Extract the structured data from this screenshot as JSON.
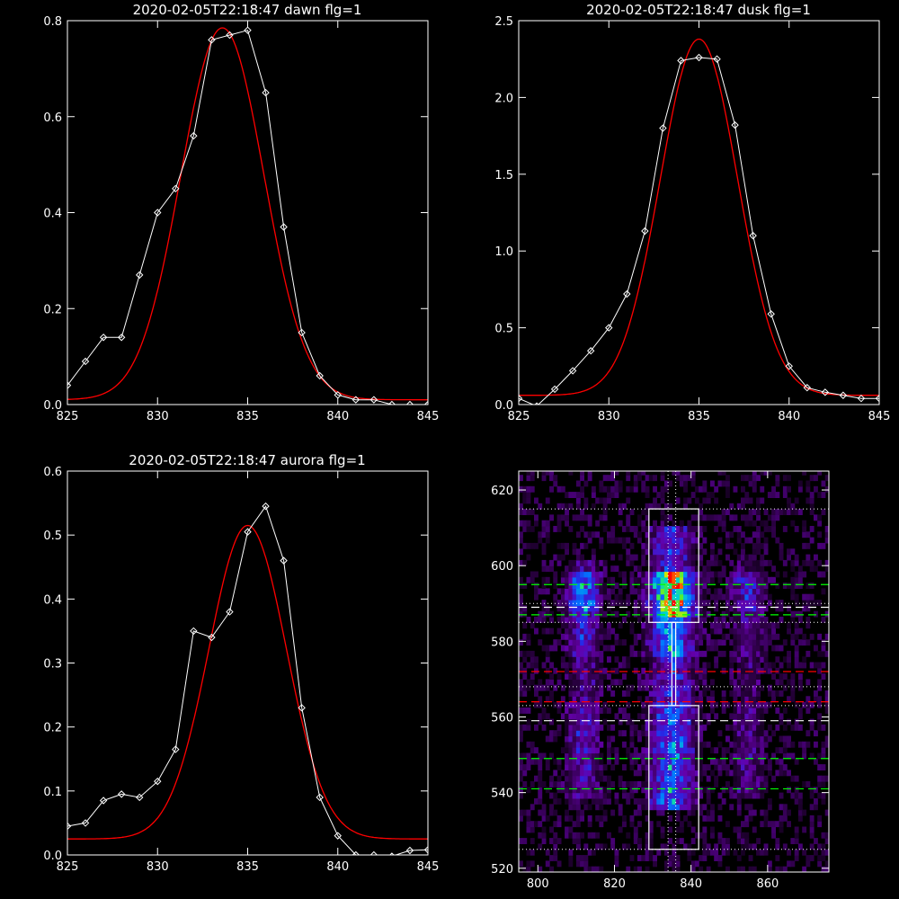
{
  "colors": {
    "background": "#000000",
    "axes": "#ffffff",
    "measured": "#ffffff",
    "fit": "#ff0000",
    "guide_green": "#00ff00",
    "guide_red": "#ff0000",
    "guide_white": "#ffffff"
  },
  "chart_data": [
    {
      "id": "dawn",
      "type": "line",
      "title": "2020-02-05T22:18:47 dawn flg=1",
      "xlim": [
        825,
        845
      ],
      "ylim": [
        0,
        0.8
      ],
      "xticks": [
        825,
        830,
        835,
        840,
        845
      ],
      "yticks": [
        0.0,
        0.2,
        0.4,
        0.6,
        0.8
      ],
      "ytick_labels": [
        "0.0",
        "0.2",
        "0.4",
        "0.6",
        "0.8"
      ],
      "measured": {
        "marker": "diamond",
        "x": [
          825,
          826,
          827,
          828,
          829,
          830,
          831,
          832,
          833,
          834,
          835,
          836,
          837,
          838,
          839,
          840,
          841,
          842,
          843,
          844,
          845
        ],
        "y": [
          0.04,
          0.09,
          0.14,
          0.14,
          0.27,
          0.4,
          0.45,
          0.56,
          0.76,
          0.77,
          0.78,
          0.65,
          0.37,
          0.15,
          0.06,
          0.02,
          0.01,
          0.01,
          0.0,
          0.0,
          0.0
        ]
      },
      "fit": {
        "amplitude": 0.775,
        "center": 833.6,
        "sigma": 2.3,
        "baseline": 0.01
      }
    },
    {
      "id": "dusk",
      "type": "line",
      "title": "2020-02-05T22:18:47 dusk flg=1",
      "xlim": [
        825,
        845
      ],
      "ylim": [
        0,
        2.5
      ],
      "xticks": [
        825,
        830,
        835,
        840,
        845
      ],
      "yticks": [
        0.0,
        0.5,
        1.0,
        1.5,
        2.0,
        2.5
      ],
      "ytick_labels": [
        "0.0",
        "0.5",
        "1.0",
        "1.5",
        "2.0",
        "2.5"
      ],
      "measured": {
        "marker": "diamond",
        "x": [
          825,
          826,
          827,
          828,
          829,
          830,
          831,
          832,
          833,
          834,
          835,
          836,
          837,
          838,
          839,
          840,
          841,
          842,
          843,
          844,
          845
        ],
        "y": [
          0.04,
          -0.01,
          0.1,
          0.22,
          0.35,
          0.5,
          0.72,
          1.13,
          1.8,
          2.24,
          2.26,
          2.25,
          1.82,
          1.1,
          0.59,
          0.25,
          0.11,
          0.08,
          0.06,
          0.04,
          0.04
        ]
      },
      "fit": {
        "amplitude": 2.32,
        "center": 835.0,
        "sigma": 2.15,
        "baseline": 0.06
      }
    },
    {
      "id": "aurora",
      "type": "line",
      "title": "2020-02-05T22:18:47 aurora flg=1",
      "xlim": [
        825,
        845
      ],
      "ylim": [
        0,
        0.6
      ],
      "xticks": [
        825,
        830,
        835,
        840,
        845
      ],
      "yticks": [
        0.0,
        0.1,
        0.2,
        0.3,
        0.4,
        0.5,
        0.6
      ],
      "ytick_labels": [
        "0.0",
        "0.1",
        "0.2",
        "0.3",
        "0.4",
        "0.5",
        "0.6"
      ],
      "measured": {
        "marker": "diamond",
        "x": [
          825,
          826,
          827,
          828,
          829,
          830,
          831,
          832,
          833,
          834,
          835,
          836,
          837,
          838,
          839,
          840,
          841,
          842,
          843,
          844,
          845
        ],
        "y": [
          0.045,
          0.05,
          0.085,
          0.095,
          0.09,
          0.115,
          0.165,
          0.35,
          0.34,
          0.38,
          0.505,
          0.545,
          0.46,
          0.23,
          0.09,
          0.03,
          0.0,
          0.0,
          -0.002,
          0.007,
          0.008
        ]
      },
      "fit": {
        "amplitude": 0.49,
        "center": 835.0,
        "sigma": 2.15,
        "baseline": 0.025
      }
    },
    {
      "id": "image",
      "type": "heatmap",
      "xlim": [
        795,
        876
      ],
      "ylim": [
        519,
        625
      ],
      "xticks": [
        800,
        820,
        840,
        860
      ],
      "yticks": [
        520,
        540,
        560,
        580,
        600,
        620
      ],
      "columns": [
        {
          "center": 812,
          "width": 6,
          "peak": 0.55,
          "high": [
            588,
            598
          ],
          "extent": [
            538,
            600
          ]
        },
        {
          "center": 835,
          "width": 8,
          "peak": 1.0,
          "high": [
            586,
            598
          ],
          "extent": [
            535,
            610
          ]
        },
        {
          "center": 855,
          "width": 6,
          "peak": 0.35,
          "high": [
            588,
            598
          ],
          "extent": [
            538,
            600
          ]
        }
      ],
      "boxes": [
        {
          "x": [
            829,
            842
          ],
          "y": [
            525,
            563
          ]
        },
        {
          "x": [
            829,
            842
          ],
          "y": [
            585,
            615
          ]
        },
        {
          "x": [
            835,
            836
          ],
          "y": [
            563,
            585
          ]
        }
      ],
      "vertical_dotted_lines": [
        834,
        836
      ],
      "horizontal_dotted_lines": [
        525,
        615,
        563,
        585,
        568,
        590
      ],
      "dashed_lines": [
        {
          "y": 595,
          "color": "green"
        },
        {
          "y": 589,
          "color": "white"
        },
        {
          "y": 587,
          "color": "green"
        },
        {
          "y": 572,
          "color": "red"
        },
        {
          "y": 564,
          "color": "red"
        },
        {
          "y": 559,
          "color": "white"
        },
        {
          "y": 549,
          "color": "green"
        },
        {
          "y": 541,
          "color": "green"
        }
      ]
    }
  ]
}
